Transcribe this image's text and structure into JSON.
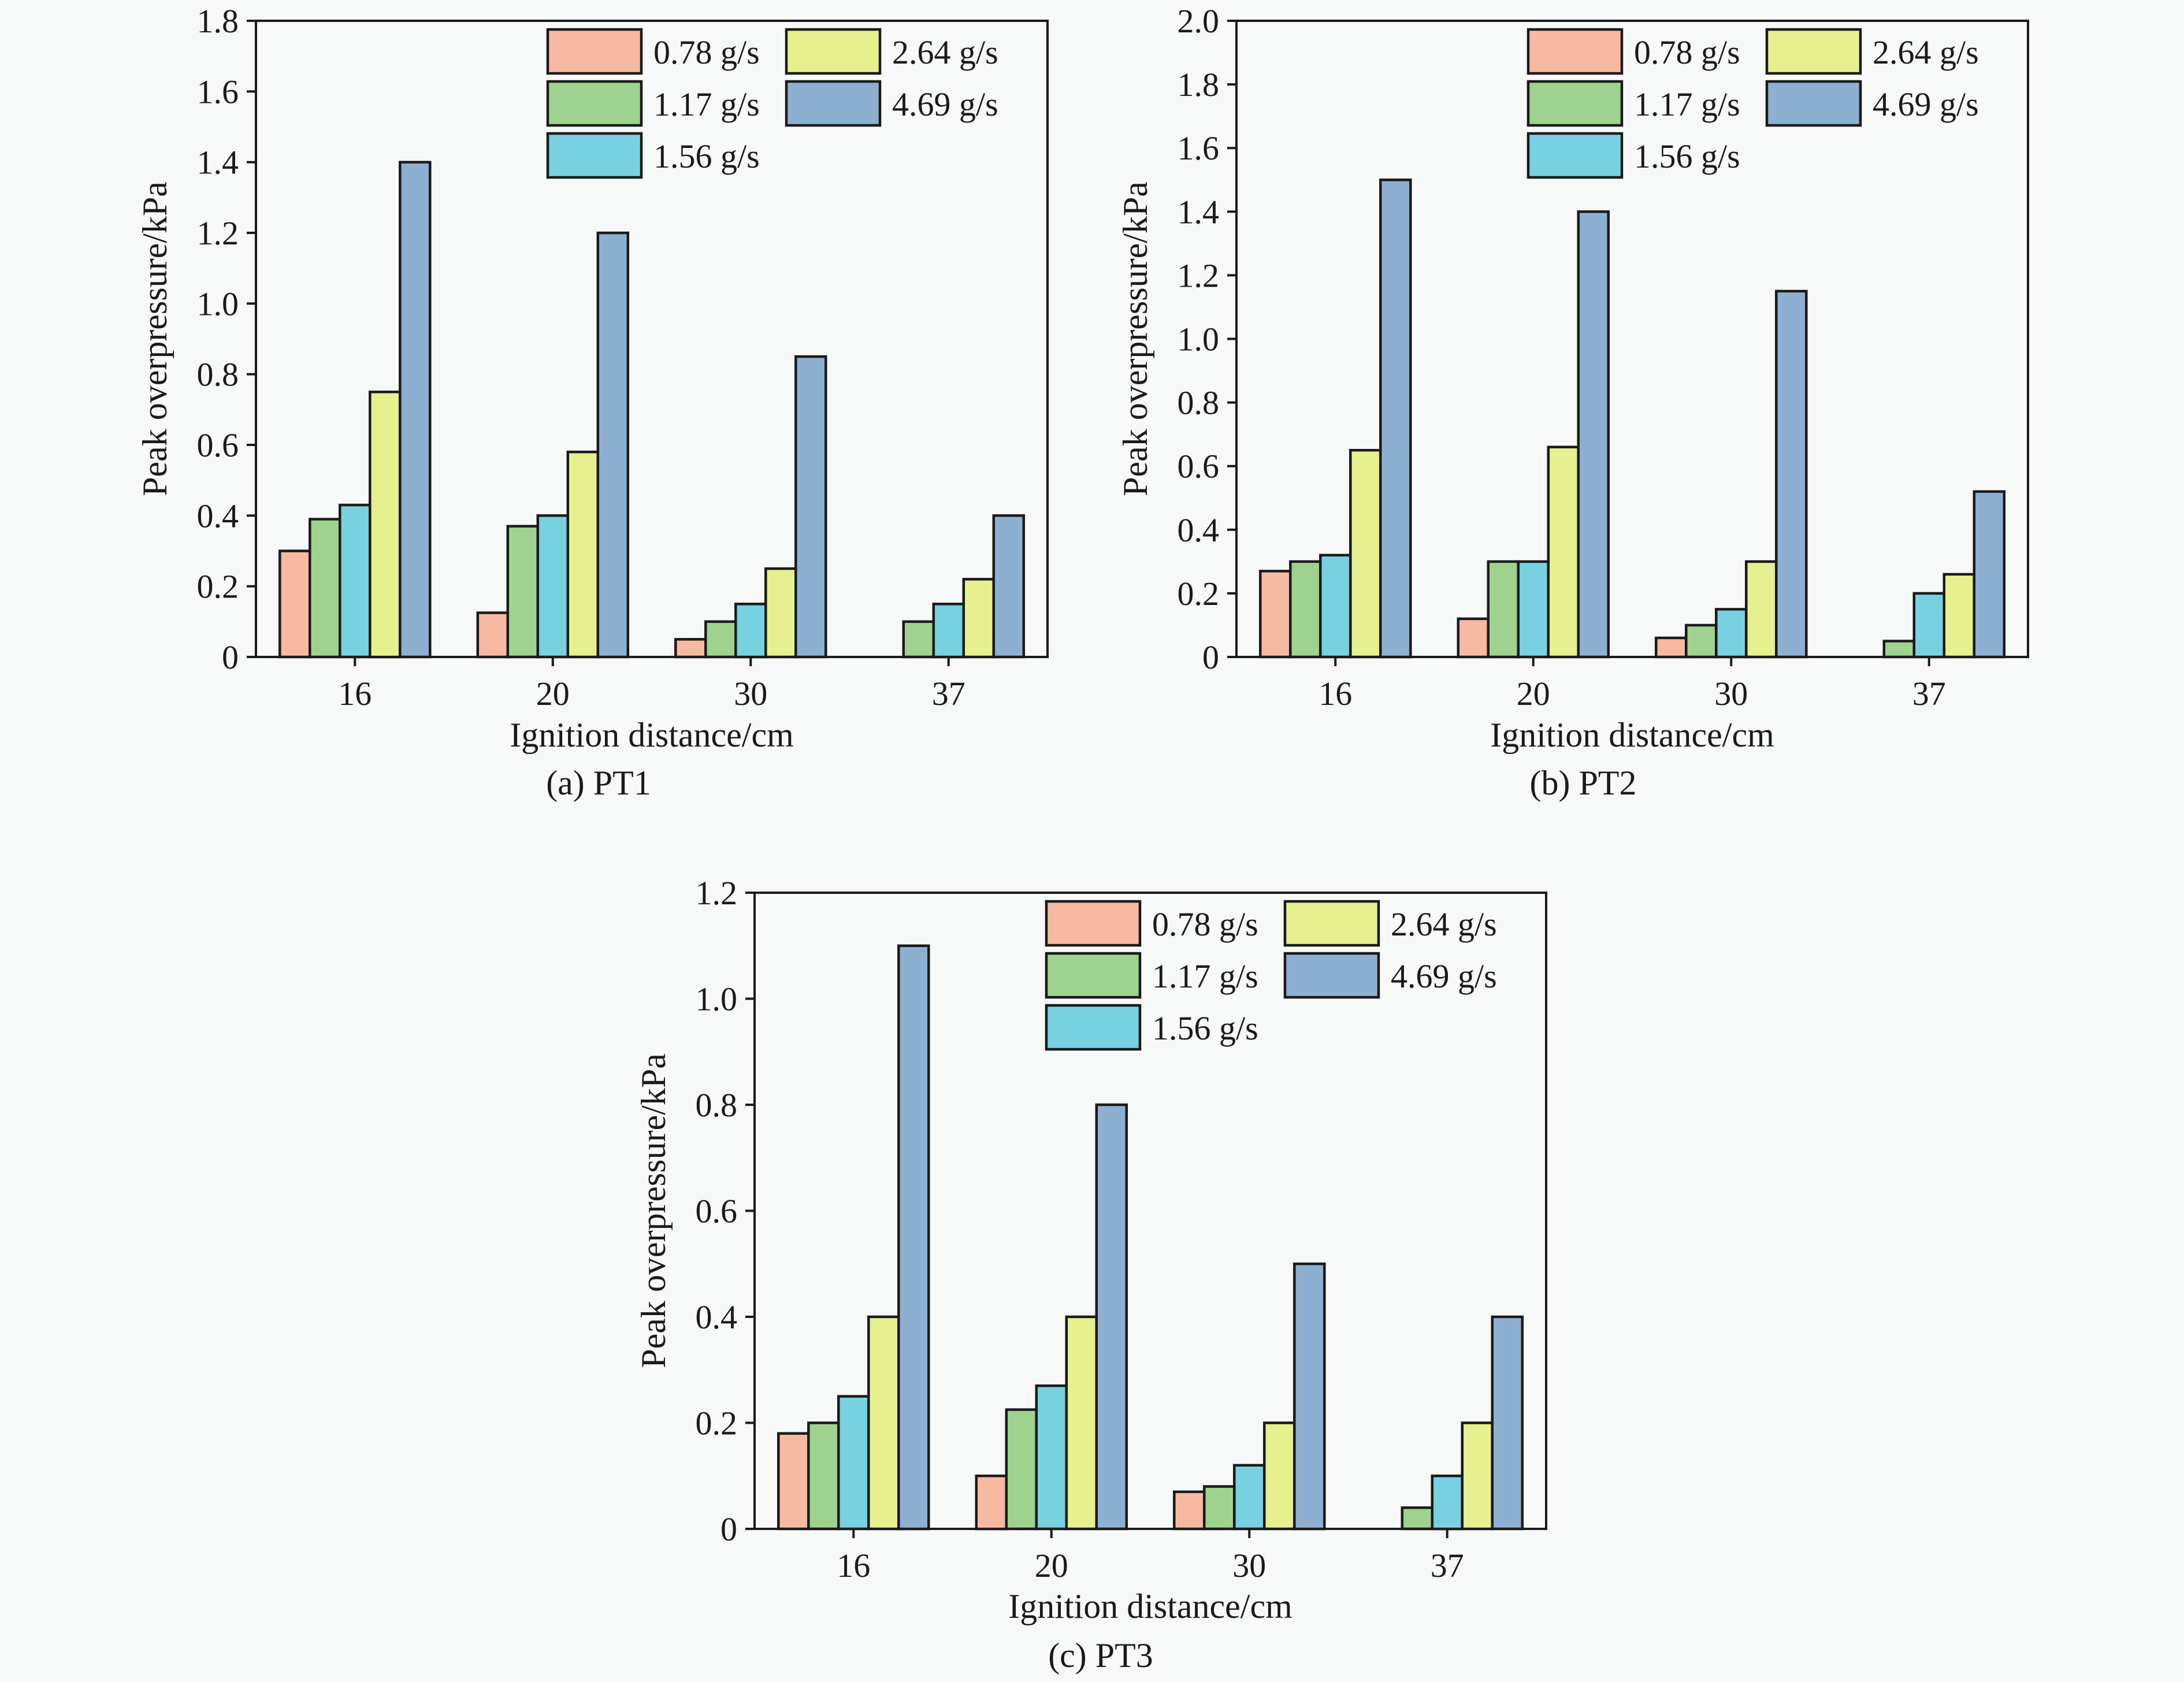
{
  "colors": {
    "0.78 g/s": "#f8b9a1",
    "1.17 g/s": "#9fd18f",
    "1.56 g/s": "#77d1df",
    "2.64 g/s": "#e5f18c",
    "4.69 g/s": "#8dafd0"
  },
  "chart_data": [
    {
      "type": "bar",
      "caption": "(a) PT1",
      "xlabel": "Ignition distance/cm",
      "ylabel": "Peak overpressure/kPa",
      "categories": [
        "16",
        "20",
        "30",
        "37"
      ],
      "ylim": [
        0,
        1.8
      ],
      "yticks": [
        "0",
        "0.2",
        "0.4",
        "0.6",
        "0.8",
        "1.0",
        "1.2",
        "1.4",
        "1.6",
        "1.8"
      ],
      "legend_position": "top-right",
      "series": [
        {
          "name": "0.78 g/s",
          "values": [
            0.3,
            0.125,
            0.05,
            0
          ]
        },
        {
          "name": "1.17 g/s",
          "values": [
            0.39,
            0.37,
            0.1,
            0.1
          ]
        },
        {
          "name": "1.56 g/s",
          "values": [
            0.43,
            0.4,
            0.15,
            0.15
          ]
        },
        {
          "name": "2.64 g/s",
          "values": [
            0.75,
            0.58,
            0.25,
            0.22
          ]
        },
        {
          "name": "4.69 g/s",
          "values": [
            1.4,
            1.2,
            0.85,
            0.4
          ]
        }
      ]
    },
    {
      "type": "bar",
      "caption": "(b) PT2",
      "xlabel": "Ignition distance/cm",
      "ylabel": "Peak overpressure/kPa",
      "categories": [
        "16",
        "20",
        "30",
        "37"
      ],
      "ylim": [
        0,
        2.0
      ],
      "yticks": [
        "0",
        "0.2",
        "0.4",
        "0.6",
        "0.8",
        "1.0",
        "1.2",
        "1.4",
        "1.6",
        "1.8",
        "2.0"
      ],
      "legend_position": "top-right",
      "series": [
        {
          "name": "0.78 g/s",
          "values": [
            0.27,
            0.12,
            0.06,
            0
          ]
        },
        {
          "name": "1.17 g/s",
          "values": [
            0.3,
            0.3,
            0.1,
            0.05
          ]
        },
        {
          "name": "1.56 g/s",
          "values": [
            0.32,
            0.3,
            0.15,
            0.2
          ]
        },
        {
          "name": "2.64 g/s",
          "values": [
            0.65,
            0.66,
            0.3,
            0.26
          ]
        },
        {
          "name": "4.69 g/s",
          "values": [
            1.5,
            1.4,
            1.15,
            0.52
          ]
        }
      ]
    },
    {
      "type": "bar",
      "caption": "(c) PT3",
      "xlabel": "Ignition distance/cm",
      "ylabel": "Peak overpressure/kPa",
      "categories": [
        "16",
        "20",
        "30",
        "37"
      ],
      "ylim": [
        0,
        1.2
      ],
      "yticks": [
        "0",
        "0.2",
        "0.4",
        "0.6",
        "0.8",
        "1.0",
        "1.2"
      ],
      "legend_position": "top-right",
      "series": [
        {
          "name": "0.78 g/s",
          "values": [
            0.18,
            0.1,
            0.07,
            0
          ]
        },
        {
          "name": "1.17 g/s",
          "values": [
            0.2,
            0.225,
            0.08,
            0.04
          ]
        },
        {
          "name": "1.56 g/s",
          "values": [
            0.25,
            0.27,
            0.12,
            0.1
          ]
        },
        {
          "name": "2.64 g/s",
          "values": [
            0.4,
            0.4,
            0.2,
            0.2
          ]
        },
        {
          "name": "4.69 g/s",
          "values": [
            1.1,
            0.8,
            0.5,
            0.4
          ]
        }
      ]
    }
  ]
}
